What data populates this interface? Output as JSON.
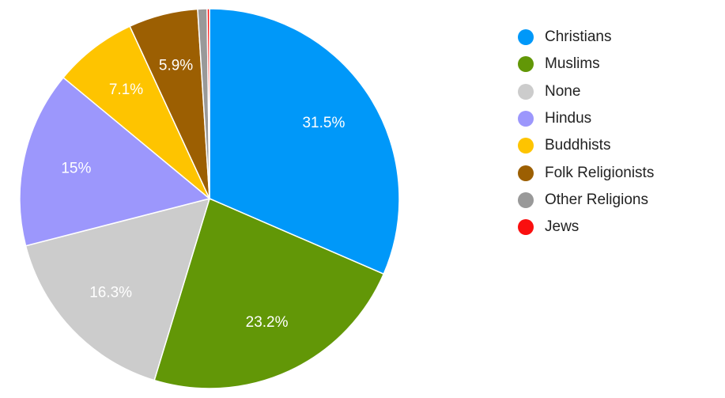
{
  "chart_data": {
    "type": "pie",
    "title": "",
    "legend_position": "right",
    "categories": [
      "Christians",
      "Muslims",
      "None",
      "Hindus",
      "Buddhists",
      "Folk Religionists",
      "Other Religions",
      "Jews"
    ],
    "values": [
      31.5,
      23.2,
      16.3,
      15,
      7.1,
      5.9,
      0.8,
      0.2
    ],
    "value_labels": [
      "31.5%",
      "23.2%",
      "16.3%",
      "15%",
      "7.1%",
      "5.9%",
      "",
      ""
    ],
    "colors": [
      "#0098f9",
      "#629707",
      "#cccccc",
      "#9c97fc",
      "#fec400",
      "#9c5f02",
      "#999999",
      "#fa0f0f"
    ]
  }
}
